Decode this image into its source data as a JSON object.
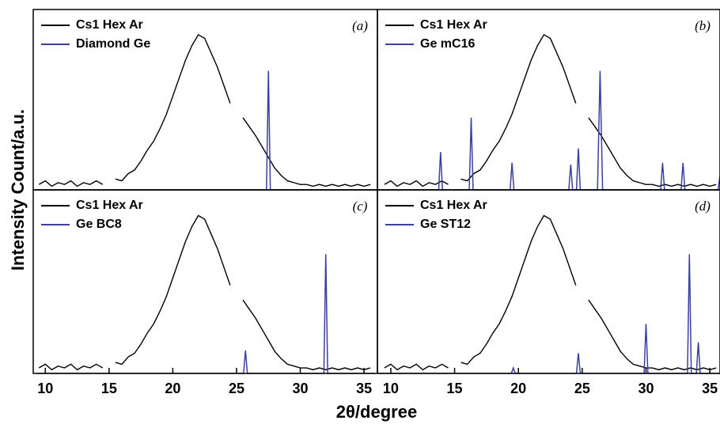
{
  "x_label": "2θ/degree",
  "y_label": "Intensity Count/a.u.",
  "chart_data": [
    {
      "type": "line",
      "panel_label": "(a)",
      "xlim": [
        9.05,
        36.05
      ],
      "ylim": [
        0,
        100
      ],
      "series": [
        {
          "name": "Cs1 Hex Ar",
          "color": "#000000",
          "x": [
            9.5,
            10,
            10.5,
            11,
            11.5,
            12,
            12.5,
            13,
            13.5,
            14,
            14.5,
            15,
            15.5,
            16,
            16.5,
            17,
            17.5,
            18,
            18.5,
            19,
            19.5,
            20,
            20.5,
            21,
            21.5,
            22,
            22.5,
            23,
            23.5,
            24,
            24.5,
            25,
            25.5,
            26,
            26.5,
            27,
            27.5,
            28,
            28.5,
            29,
            29.5,
            30,
            30.5,
            31,
            31.5,
            32,
            32.5,
            33,
            33.5,
            34,
            34.5,
            35,
            35.5
          ],
          "values": [
            3,
            5,
            2,
            4,
            3,
            5,
            2,
            4,
            3,
            5,
            3,
            null,
            6,
            5,
            9,
            11,
            16,
            22,
            27,
            34,
            42,
            52,
            62,
            72,
            80,
            86,
            84,
            76,
            68,
            58,
            48,
            null,
            40,
            35,
            30,
            24,
            18,
            12,
            8,
            5,
            4,
            3,
            3,
            2,
            3,
            2,
            3,
            2,
            3,
            2,
            3,
            2,
            3
          ]
        },
        {
          "name": "Diamond Ge",
          "color": "#3a3fa0",
          "x": [
            9.3,
            27.35,
            27.5,
            27.65,
            35.9
          ],
          "values": [
            0,
            0,
            66,
            0,
            0
          ]
        }
      ]
    },
    {
      "type": "line",
      "panel_label": "(b)",
      "xlim": [
        8.95,
        35.8
      ],
      "ylim": [
        0,
        100
      ],
      "series": [
        {
          "name": "Cs1 Hex Ar",
          "color": "#000000",
          "x": [
            9.5,
            10,
            10.5,
            11,
            11.5,
            12,
            12.5,
            13,
            13.5,
            14,
            14.5,
            15,
            15.5,
            16,
            16.5,
            17,
            17.5,
            18,
            18.5,
            19,
            19.5,
            20,
            20.5,
            21,
            21.5,
            22,
            22.5,
            23,
            23.5,
            24,
            24.5,
            25,
            25.5,
            26,
            26.5,
            27,
            27.5,
            28,
            28.5,
            29,
            29.5,
            30,
            30.5,
            31,
            31.5,
            32,
            32.5,
            33,
            33.5,
            34,
            34.5,
            35,
            35.5
          ],
          "values": [
            3,
            5,
            2,
            4,
            3,
            5,
            2,
            4,
            3,
            5,
            3,
            null,
            6,
            5,
            9,
            11,
            16,
            22,
            27,
            34,
            42,
            52,
            62,
            72,
            80,
            86,
            84,
            76,
            68,
            58,
            48,
            null,
            40,
            35,
            30,
            24,
            18,
            12,
            8,
            5,
            4,
            3,
            3,
            2,
            3,
            2,
            3,
            2,
            3,
            2,
            3,
            2,
            3
          ]
        },
        {
          "name": "Ge mC16",
          "color": "#3a3fa0",
          "x": [
            9.0,
            13.75,
            13.9,
            14.05,
            16.15,
            16.3,
            16.45,
            19.35,
            19.5,
            19.65,
            23.95,
            24.1,
            24.25,
            24.55,
            24.7,
            24.85,
            26.2,
            26.4,
            26.6,
            31.15,
            31.3,
            31.45,
            32.75,
            32.9,
            33.05,
            35.65,
            35.8
          ],
          "values": [
            0,
            0,
            21,
            0,
            0,
            40,
            0,
            0,
            15,
            0,
            0,
            14,
            0,
            0,
            23,
            0,
            0,
            66,
            0,
            0,
            15,
            0,
            0,
            15,
            0,
            0,
            8
          ]
        }
      ]
    },
    {
      "type": "line",
      "panel_label": "(c)",
      "xlim": [
        9.05,
        36.05
      ],
      "ylim": [
        0,
        100
      ],
      "xticks": [
        10,
        15,
        20,
        25,
        30,
        35
      ],
      "series": [
        {
          "name": "Cs1 Hex Ar",
          "color": "#000000",
          "x": [
            9.5,
            10,
            10.5,
            11,
            11.5,
            12,
            12.5,
            13,
            13.5,
            14,
            14.5,
            15,
            15.5,
            16,
            16.5,
            17,
            17.5,
            18,
            18.5,
            19,
            19.5,
            20,
            20.5,
            21,
            21.5,
            22,
            22.5,
            23,
            23.5,
            24,
            24.5,
            25,
            25.5,
            26,
            26.5,
            27,
            27.5,
            28,
            28.5,
            29,
            29.5,
            30,
            30.5,
            31,
            31.5,
            32,
            32.5,
            33,
            33.5,
            34,
            34.5,
            35,
            35.5
          ],
          "values": [
            3,
            5,
            2,
            4,
            3,
            5,
            2,
            4,
            3,
            5,
            3,
            null,
            6,
            5,
            9,
            11,
            16,
            22,
            27,
            34,
            42,
            52,
            62,
            72,
            80,
            86,
            84,
            76,
            68,
            58,
            48,
            null,
            40,
            35,
            30,
            24,
            18,
            12,
            8,
            5,
            4,
            3,
            3,
            2,
            3,
            2,
            3,
            2,
            3,
            2,
            3,
            2,
            3
          ]
        },
        {
          "name": "Ge BC8",
          "color": "#3a3fa0",
          "x": [
            9.3,
            25.55,
            25.7,
            25.85,
            31.85,
            32.0,
            32.15,
            35.9
          ],
          "values": [
            0,
            0,
            12.5,
            0,
            0,
            65,
            0,
            0
          ]
        }
      ]
    },
    {
      "type": "line",
      "panel_label": "(d)",
      "xlim": [
        8.95,
        35.8
      ],
      "ylim": [
        0,
        100
      ],
      "xticks": [
        10,
        15,
        20,
        25,
        30,
        35
      ],
      "series": [
        {
          "name": "Cs1 Hex Ar",
          "color": "#000000",
          "x": [
            9.5,
            10,
            10.5,
            11,
            11.5,
            12,
            12.5,
            13,
            13.5,
            14,
            14.5,
            15,
            15.5,
            16,
            16.5,
            17,
            17.5,
            18,
            18.5,
            19,
            19.5,
            20,
            20.5,
            21,
            21.5,
            22,
            22.5,
            23,
            23.5,
            24,
            24.5,
            25,
            25.5,
            26,
            26.5,
            27,
            27.5,
            28,
            28.5,
            29,
            29.5,
            30,
            30.5,
            31,
            31.5,
            32,
            32.5,
            33,
            33.5,
            34,
            34.5,
            35,
            35.5
          ],
          "values": [
            3,
            5,
            2,
            4,
            3,
            5,
            2,
            4,
            3,
            5,
            3,
            null,
            6,
            5,
            9,
            11,
            16,
            22,
            27,
            34,
            42,
            52,
            62,
            72,
            80,
            86,
            84,
            76,
            68,
            58,
            48,
            null,
            40,
            35,
            30,
            24,
            18,
            12,
            8,
            5,
            4,
            3,
            3,
            2,
            3,
            2,
            3,
            2,
            3,
            2,
            3,
            2,
            3
          ]
        },
        {
          "name": "Ge ST12",
          "color": "#3a3fa0",
          "x": [
            9.0,
            19.45,
            19.6,
            19.75,
            24.55,
            24.7,
            24.85,
            29.85,
            30.0,
            30.15,
            33.25,
            33.4,
            33.55,
            33.95,
            34.1,
            34.25,
            35.8
          ],
          "values": [
            0,
            0,
            3,
            0,
            0,
            11,
            0,
            0,
            27,
            0,
            0,
            65,
            0,
            0,
            17,
            0,
            0
          ]
        }
      ]
    }
  ]
}
